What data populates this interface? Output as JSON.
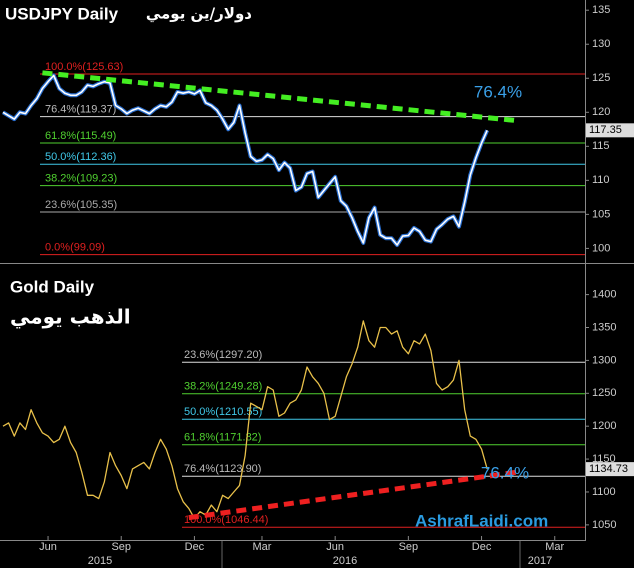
{
  "x_axis": {
    "categories": [
      null,
      null,
      null,
      null,
      null,
      null,
      null,
      null,
      "Jun",
      null,
      null,
      null,
      null,
      null,
      null,
      null,
      null,
      null,
      null,
      null,
      null,
      "Sep",
      null,
      null,
      null,
      null,
      null,
      null,
      null,
      null,
      null,
      null,
      null,
      null,
      "Dec",
      null,
      null,
      null,
      null,
      null,
      null,
      null,
      null,
      null,
      null,
      null,
      "Mar",
      null,
      null,
      null,
      null,
      null,
      null,
      null,
      null,
      null,
      null,
      null,
      null,
      "Jun",
      null,
      null,
      null,
      null,
      null,
      null,
      null,
      null,
      null,
      null,
      null,
      null,
      "Sep",
      null,
      null,
      null,
      null,
      null,
      null,
      null,
      null,
      null,
      null,
      null,
      null,
      "Dec",
      null,
      null,
      null,
      null,
      null,
      null,
      null,
      null,
      null,
      null,
      null,
      null,
      "Mar",
      null,
      null,
      null,
      null
    ],
    "years": [
      "2015",
      "2016",
      "2017"
    ]
  },
  "chart_data": [
    {
      "type": "line",
      "title": "USDJPY Daily",
      "subtitle": "دولار/ين يومي",
      "series": [
        {
          "name": "USDJPY",
          "color": "#ffffff",
          "values": [
            120,
            119.5,
            119,
            120,
            119.8,
            121,
            122,
            123.5,
            124.5,
            125.4,
            123.5,
            122.8,
            122.5,
            122.5,
            123,
            124,
            123.8,
            124.2,
            124.5,
            124.3,
            121,
            120.5,
            119.8,
            120.3,
            120.6,
            120.2,
            119.8,
            120.5,
            121,
            120.8,
            121.5,
            123,
            122.8,
            123,
            122.7,
            123.2,
            121.4,
            121,
            120.3,
            119,
            117.5,
            118.5,
            121,
            117,
            113.5,
            112.8,
            113,
            113.8,
            113.2,
            111.5,
            112.6,
            111.8,
            108.5,
            109,
            111,
            111.3,
            107.5,
            108.5,
            109.5,
            110.5,
            107,
            106.2,
            104.5,
            102.5,
            100.8,
            104.5,
            106,
            102,
            101.5,
            101.5,
            100.5,
            101.8,
            101.9,
            103,
            102.5,
            101.2,
            101,
            102.8,
            103.5,
            104.3,
            104.7,
            103.2,
            106.8,
            110.8,
            113.3,
            115.5,
            117.35,
            null,
            null,
            null,
            null,
            null,
            null,
            null,
            null,
            null,
            null,
            null,
            null,
            null,
            null,
            null,
            null,
            null
          ]
        }
      ],
      "ylim": [
        98,
        136.5
      ],
      "yticks": [
        100,
        105,
        110,
        115,
        120,
        125,
        130,
        135
      ],
      "fib_levels": [
        {
          "label": "100.0%(125.63)",
          "value": 125.63,
          "color": "#e02020"
        },
        {
          "label": "76.4%(119.37)",
          "value": 119.37,
          "color": "#dddddd"
        },
        {
          "label": "61.8%(115.49)",
          "value": 115.49,
          "color": "#50d030"
        },
        {
          "label": "50.0%(112.36)",
          "value": 112.36,
          "color": "#40c8e8"
        },
        {
          "label": "38.2%(109.23)",
          "value": 109.23,
          "color": "#50d030"
        },
        {
          "label": "23.6%(105.35)",
          "value": 105.35,
          "color": "#aaaaaa"
        },
        {
          "label": "0.0%(99.09)",
          "value": 99.09,
          "color": "#e02020"
        }
      ],
      "trendline": {
        "values": [
          125.8,
          118.8
        ],
        "color": "#44ee22"
      },
      "annotation": "76.4%"
    },
    {
      "type": "line",
      "title": "Gold Daily",
      "subtitle": "الذهب يومي",
      "series": [
        {
          "name": "Gold",
          "color": "#e8c04a",
          "values": [
            1200,
            1205,
            1185,
            1205,
            1195,
            1225,
            1205,
            1190,
            1185,
            1175,
            1180,
            1200,
            1175,
            1160,
            1130,
            1095,
            1095,
            1090,
            1115,
            1160,
            1140,
            1125,
            1105,
            1135,
            1140,
            1145,
            1135,
            1160,
            1180,
            1165,
            1140,
            1105,
            1085,
            1075,
            1060,
            1070,
            1065,
            1080,
            1070,
            1095,
            1090,
            1100,
            1110,
            1155,
            1235,
            1230,
            1225,
            1260,
            1255,
            1215,
            1220,
            1235,
            1240,
            1255,
            1290,
            1275,
            1265,
            1250,
            1210,
            1215,
            1245,
            1275,
            1295,
            1320,
            1360,
            1330,
            1320,
            1350,
            1350,
            1340,
            1345,
            1320,
            1310,
            1330,
            1325,
            1340,
            1315,
            1265,
            1255,
            1260,
            1270,
            1300,
            1225,
            1185,
            1180,
            1165,
            1134.73,
            null,
            null,
            null,
            null,
            null,
            null,
            null,
            null,
            null,
            null,
            null,
            null,
            null,
            null,
            null,
            null,
            null
          ]
        }
      ],
      "ylim": [
        1027,
        1445
      ],
      "yticks": [
        1050,
        1100,
        1150,
        1200,
        1250,
        1300,
        1350,
        1400
      ],
      "fib_levels": [
        {
          "label": "23.6%(1297.20)",
          "value": 1297.2,
          "color": "#dddddd"
        },
        {
          "label": "38.2%(1249.28)",
          "value": 1249.28,
          "color": "#50d030"
        },
        {
          "label": "50.0%(1210.55)",
          "value": 1210.55,
          "color": "#40c8e8"
        },
        {
          "label": "61.8%(1171.82)",
          "value": 1171.82,
          "color": "#50d030"
        },
        {
          "label": "76.4%(1123.90)",
          "value": 1123.9,
          "color": "#dddddd"
        },
        {
          "label": "100.0%(1046.44)",
          "value": 1046.44,
          "color": "#e02020"
        }
      ],
      "trendline": {
        "values": [
          1061,
          1131
        ],
        "color": "#ee2020"
      },
      "annotation": "76.4%",
      "watermark": "AshrafLaidi.com"
    }
  ]
}
